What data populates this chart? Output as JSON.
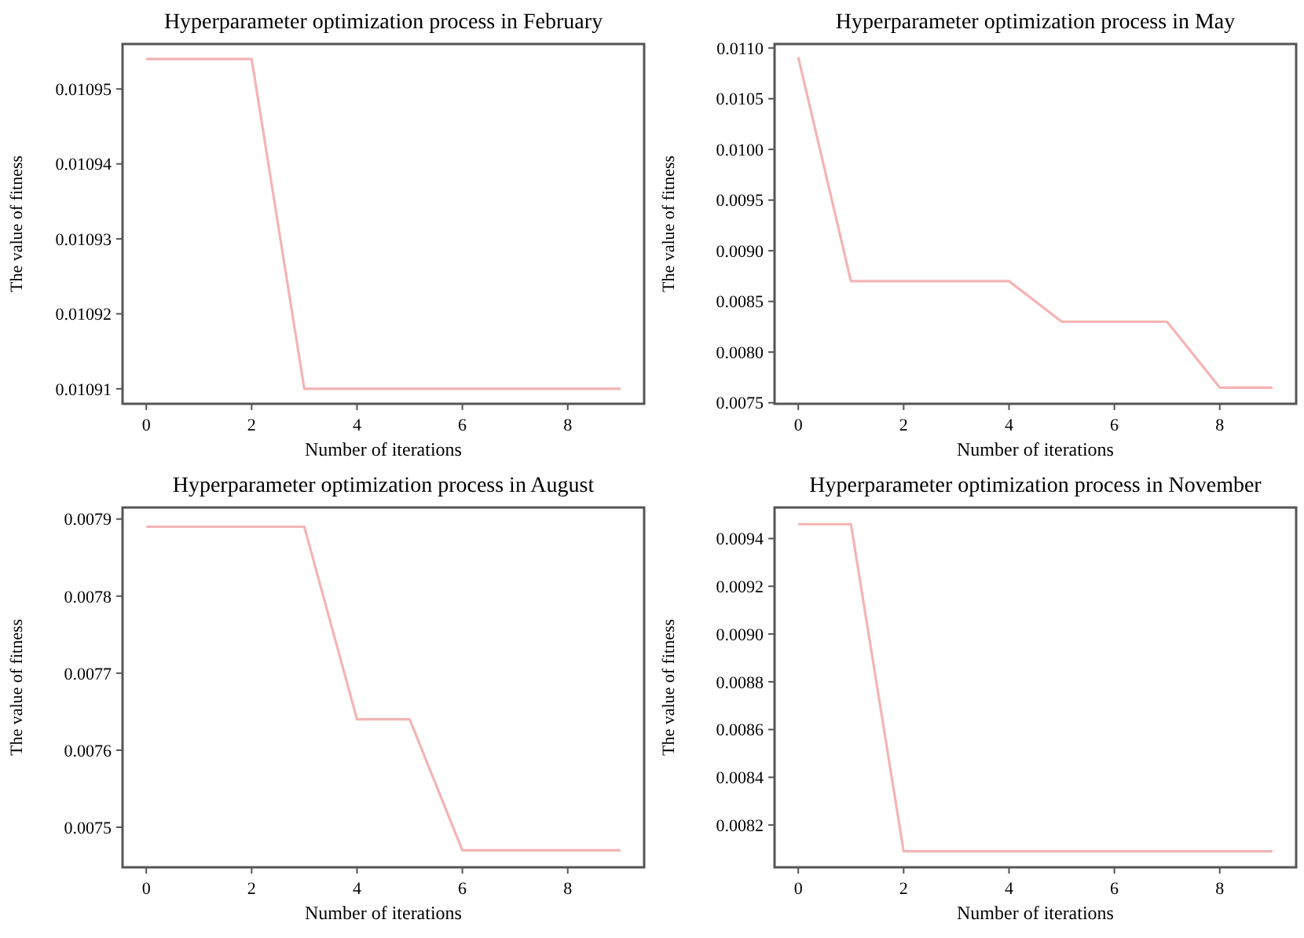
{
  "chart_data": [
    {
      "type": "line",
      "title": "Hyperparameter optimization process in February",
      "xlabel": "Number of iterations",
      "ylabel": "The value of fitness",
      "x": [
        0,
        1,
        2,
        3,
        4,
        5,
        6,
        7,
        8,
        9
      ],
      "series": [
        {
          "color": "#f4b4b4",
          "values": [
            0.010954,
            0.010954,
            0.010954,
            0.01091,
            0.01091,
            0.01091,
            0.01091,
            0.01091,
            0.01091,
            0.01091
          ]
        }
      ],
      "xlim": [
        -0.45,
        9.45
      ],
      "xticks": [
        0,
        2,
        4,
        6,
        8
      ],
      "ylim": [
        0.010908,
        0.010956
      ],
      "yticks": [
        0.01091,
        0.01092,
        0.01093,
        0.01094,
        0.01095
      ],
      "grid": false,
      "marker": "none",
      "line_style": "solid"
    },
    {
      "type": "line",
      "title": "Hyperparameter optimization process in May",
      "xlabel": "Number of iterations",
      "ylabel": "The value of fitness",
      "x": [
        0,
        1,
        2,
        3,
        4,
        5,
        6,
        7,
        8,
        9
      ],
      "series": [
        {
          "color": "#f4b4b4",
          "values": [
            0.01091,
            0.0087,
            0.0087,
            0.0087,
            0.0087,
            0.0083,
            0.0083,
            0.0083,
            0.00765,
            0.00765
          ]
        }
      ],
      "xlim": [
        -0.45,
        9.45
      ],
      "xticks": [
        0,
        2,
        4,
        6,
        8
      ],
      "ylim": [
        0.00749,
        0.01104
      ],
      "yticks": [
        {
          "value": 0.0075,
          "label": "0.0075"
        },
        {
          "value": 0.008,
          "label": "0.0080"
        },
        {
          "value": 0.0085,
          "label": "0.0085"
        },
        {
          "value": 0.009,
          "label": "0.0090"
        },
        {
          "value": 0.0095,
          "label": "0.0095"
        },
        {
          "value": 0.01,
          "label": "0.0100"
        },
        {
          "value": 0.0105,
          "label": "0.0105"
        },
        {
          "value": 0.011,
          "label": "0.0110"
        }
      ],
      "grid": false,
      "marker": "none",
      "line_style": "solid"
    },
    {
      "type": "line",
      "title": "Hyperparameter optimization process in August",
      "xlabel": "Number of iterations",
      "ylabel": "The value of fitness",
      "x": [
        0,
        1,
        2,
        3,
        4,
        5,
        6,
        7,
        8,
        9
      ],
      "series": [
        {
          "color": "#f4b4b4",
          "values": [
            0.00789,
            0.00789,
            0.00789,
            0.00789,
            0.00764,
            0.00764,
            0.00747,
            0.00747,
            0.00747,
            0.00747
          ]
        }
      ],
      "xlim": [
        -0.45,
        9.45
      ],
      "xticks": [
        0,
        2,
        4,
        6,
        8
      ],
      "ylim": [
        0.007448,
        0.007915
      ],
      "yticks": [
        0.0075,
        0.0076,
        0.0077,
        0.0078,
        0.0079
      ],
      "grid": false,
      "marker": "none",
      "line_style": "solid"
    },
    {
      "type": "line",
      "title": "Hyperparameter optimization process in November",
      "xlabel": "Number of iterations",
      "ylabel": "The value of fitness",
      "x": [
        0,
        1,
        2,
        3,
        4,
        5,
        6,
        7,
        8,
        9
      ],
      "series": [
        {
          "color": "#f4b4b4",
          "values": [
            0.00946,
            0.00946,
            0.00809,
            0.00809,
            0.00809,
            0.00809,
            0.00809,
            0.00809,
            0.00809,
            0.00809
          ]
        }
      ],
      "xlim": [
        -0.45,
        9.45
      ],
      "xticks": [
        0,
        2,
        4,
        6,
        8
      ],
      "ylim": [
        0.008023,
        0.00953
      ],
      "yticks": [
        0.0082,
        0.0084,
        0.0086,
        0.0088,
        {
          "value": 0.009,
          "label": "0.0090"
        },
        0.0092,
        0.0094
      ],
      "grid": false,
      "marker": "none",
      "line_style": "solid"
    }
  ]
}
